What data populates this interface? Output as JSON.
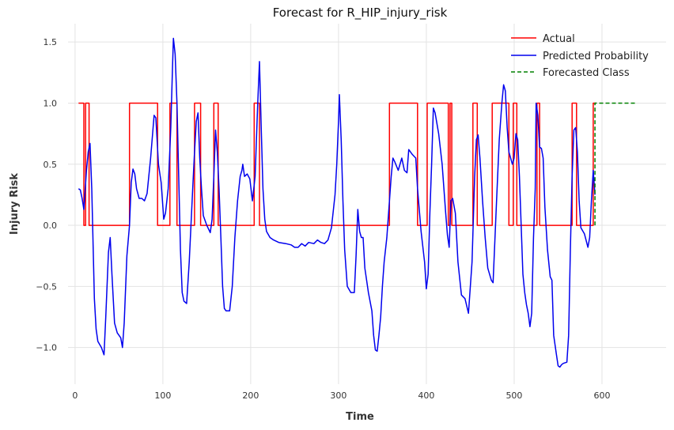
{
  "chart_data": {
    "type": "line",
    "title": "Forecast for R_HIP_injury_risk",
    "xlabel": "Time",
    "ylabel": "Injury Risk",
    "xlim": [
      -8,
      673
    ],
    "ylim": [
      -1.3,
      1.65
    ],
    "grid": true,
    "legend_position": "top-right",
    "x_ticks": [
      0,
      100,
      200,
      300,
      400,
      500,
      600
    ],
    "x_tick_labels": [
      "0",
      "100",
      "200",
      "300",
      "400",
      "500",
      "600"
    ],
    "y_ticks": [
      1.5,
      1.0,
      0.5,
      0.0,
      -0.5,
      -1.0
    ],
    "y_tick_labels": [
      "1.5",
      "1.0",
      "0.5",
      "0.0",
      "−0.5",
      "−1.0"
    ],
    "series": [
      {
        "name": "Actual",
        "color": "#ff0000",
        "style": "solid",
        "points": [
          [
            4,
            1
          ],
          [
            10,
            1
          ],
          [
            10,
            0
          ],
          [
            12,
            0
          ],
          [
            12,
            1
          ],
          [
            16,
            1
          ],
          [
            16,
            0
          ],
          [
            62,
            0
          ],
          [
            62,
            1
          ],
          [
            94,
            1
          ],
          [
            94,
            0
          ],
          [
            108,
            0
          ],
          [
            108,
            1
          ],
          [
            116,
            1
          ],
          [
            116,
            0
          ],
          [
            136,
            0
          ],
          [
            136,
            1
          ],
          [
            143,
            1
          ],
          [
            143,
            0
          ],
          [
            158,
            0
          ],
          [
            158,
            1
          ],
          [
            163,
            1
          ],
          [
            163,
            0
          ],
          [
            204,
            0
          ],
          [
            204,
            1
          ],
          [
            210,
            1
          ],
          [
            210,
            0
          ],
          [
            358,
            0
          ],
          [
            358,
            1
          ],
          [
            390,
            1
          ],
          [
            390,
            0
          ],
          [
            401,
            0
          ],
          [
            401,
            1
          ],
          [
            425,
            1
          ],
          [
            425,
            0
          ],
          [
            427,
            0
          ],
          [
            427,
            1
          ],
          [
            429,
            1
          ],
          [
            429,
            0
          ],
          [
            453,
            0
          ],
          [
            453,
            1
          ],
          [
            458,
            1
          ],
          [
            458,
            0
          ],
          [
            475,
            0
          ],
          [
            475,
            1
          ],
          [
            494,
            1
          ],
          [
            494,
            0
          ],
          [
            499,
            0
          ],
          [
            499,
            1
          ],
          [
            503,
            1
          ],
          [
            503,
            0
          ],
          [
            526,
            0
          ],
          [
            526,
            1
          ],
          [
            529,
            1
          ],
          [
            529,
            0
          ],
          [
            566,
            0
          ],
          [
            566,
            1
          ],
          [
            571,
            1
          ],
          [
            571,
            0
          ],
          [
            590,
            0
          ],
          [
            590,
            1
          ],
          [
            593,
            1
          ]
        ]
      },
      {
        "name": "Predicted Probability",
        "color": "#0000ee",
        "style": "solid",
        "points": [
          [
            4,
            0.3
          ],
          [
            6,
            0.29
          ],
          [
            8,
            0.22
          ],
          [
            10,
            0.13
          ],
          [
            13,
            0.45
          ],
          [
            15,
            0.6
          ],
          [
            17,
            0.67
          ],
          [
            19,
            0.3
          ],
          [
            20,
            0.0
          ],
          [
            22,
            -0.6
          ],
          [
            24,
            -0.85
          ],
          [
            26,
            -0.95
          ],
          [
            30,
            -1.0
          ],
          [
            33,
            -1.06
          ],
          [
            35,
            -0.75
          ],
          [
            38,
            -0.22
          ],
          [
            40,
            -0.1
          ],
          [
            42,
            -0.4
          ],
          [
            45,
            -0.8
          ],
          [
            48,
            -0.88
          ],
          [
            52,
            -0.92
          ],
          [
            54,
            -1.0
          ],
          [
            56,
            -0.8
          ],
          [
            59,
            -0.25
          ],
          [
            62,
            0.0
          ],
          [
            64,
            0.35
          ],
          [
            66,
            0.46
          ],
          [
            68,
            0.42
          ],
          [
            70,
            0.3
          ],
          [
            73,
            0.22
          ],
          [
            76,
            0.22
          ],
          [
            79,
            0.2
          ],
          [
            82,
            0.26
          ],
          [
            86,
            0.55
          ],
          [
            90,
            0.9
          ],
          [
            92,
            0.88
          ],
          [
            95,
            0.5
          ],
          [
            98,
            0.35
          ],
          [
            101,
            0.05
          ],
          [
            103,
            0.1
          ],
          [
            106,
            0.3
          ],
          [
            109,
            0.8
          ],
          [
            111,
            1.3
          ],
          [
            112,
            1.53
          ],
          [
            114,
            1.4
          ],
          [
            116,
            1.0
          ],
          [
            118,
            0.4
          ],
          [
            120,
            -0.2
          ],
          [
            122,
            -0.55
          ],
          [
            124,
            -0.62
          ],
          [
            127,
            -0.64
          ],
          [
            130,
            -0.3
          ],
          [
            132,
            0.0
          ],
          [
            134,
            0.3
          ],
          [
            136,
            0.6
          ],
          [
            138,
            0.85
          ],
          [
            140,
            0.92
          ],
          [
            142,
            0.55
          ],
          [
            144,
            0.3
          ],
          [
            146,
            0.08
          ],
          [
            150,
            0.0
          ],
          [
            154,
            -0.06
          ],
          [
            156,
            0.05
          ],
          [
            158,
            0.4
          ],
          [
            160,
            0.78
          ],
          [
            162,
            0.6
          ],
          [
            164,
            0.3
          ],
          [
            166,
            -0.1
          ],
          [
            168,
            -0.5
          ],
          [
            170,
            -0.68
          ],
          [
            172,
            -0.7
          ],
          [
            176,
            -0.7
          ],
          [
            179,
            -0.5
          ],
          [
            182,
            -0.1
          ],
          [
            185,
            0.2
          ],
          [
            188,
            0.4
          ],
          [
            190,
            0.45
          ],
          [
            191,
            0.5
          ],
          [
            193,
            0.4
          ],
          [
            196,
            0.42
          ],
          [
            199,
            0.38
          ],
          [
            202,
            0.2
          ],
          [
            205,
            0.4
          ],
          [
            208,
            1.0
          ],
          [
            210,
            1.34
          ],
          [
            212,
            0.8
          ],
          [
            214,
            0.3
          ],
          [
            216,
            0.05
          ],
          [
            218,
            -0.05
          ],
          [
            222,
            -0.1
          ],
          [
            226,
            -0.12
          ],
          [
            232,
            -0.14
          ],
          [
            240,
            -0.15
          ],
          [
            246,
            -0.16
          ],
          [
            250,
            -0.18
          ],
          [
            254,
            -0.18
          ],
          [
            258,
            -0.15
          ],
          [
            262,
            -0.17
          ],
          [
            266,
            -0.14
          ],
          [
            272,
            -0.15
          ],
          [
            276,
            -0.12
          ],
          [
            280,
            -0.14
          ],
          [
            284,
            -0.15
          ],
          [
            288,
            -0.12
          ],
          [
            292,
            -0.02
          ],
          [
            296,
            0.25
          ],
          [
            298,
            0.5
          ],
          [
            300,
            0.85
          ],
          [
            301,
            1.07
          ],
          [
            303,
            0.7
          ],
          [
            305,
            0.2
          ],
          [
            307,
            -0.2
          ],
          [
            310,
            -0.5
          ],
          [
            314,
            -0.55
          ],
          [
            318,
            -0.55
          ],
          [
            320,
            -0.25
          ],
          [
            322,
            0.13
          ],
          [
            324,
            -0.05
          ],
          [
            326,
            -0.1
          ],
          [
            328,
            -0.1
          ],
          [
            330,
            -0.35
          ],
          [
            334,
            -0.55
          ],
          [
            338,
            -0.7
          ],
          [
            340,
            -0.9
          ],
          [
            342,
            -1.02
          ],
          [
            344,
            -1.03
          ],
          [
            346,
            -0.9
          ],
          [
            348,
            -0.75
          ],
          [
            350,
            -0.5
          ],
          [
            352,
            -0.3
          ],
          [
            355,
            -0.1
          ],
          [
            358,
            0.2
          ],
          [
            360,
            0.4
          ],
          [
            362,
            0.55
          ],
          [
            364,
            0.52
          ],
          [
            368,
            0.45
          ],
          [
            372,
            0.55
          ],
          [
            375,
            0.45
          ],
          [
            378,
            0.43
          ],
          [
            380,
            0.62
          ],
          [
            384,
            0.58
          ],
          [
            388,
            0.55
          ],
          [
            390,
            0.3
          ],
          [
            394,
            -0.05
          ],
          [
            398,
            -0.3
          ],
          [
            400,
            -0.52
          ],
          [
            402,
            -0.4
          ],
          [
            404,
            0.1
          ],
          [
            406,
            0.5
          ],
          [
            408,
            0.96
          ],
          [
            410,
            0.92
          ],
          [
            414,
            0.75
          ],
          [
            418,
            0.5
          ],
          [
            422,
            0.1
          ],
          [
            424,
            -0.08
          ],
          [
            426,
            -0.18
          ],
          [
            428,
            0.2
          ],
          [
            430,
            0.22
          ],
          [
            433,
            0.1
          ],
          [
            436,
            -0.3
          ],
          [
            440,
            -0.57
          ],
          [
            444,
            -0.6
          ],
          [
            448,
            -0.72
          ],
          [
            452,
            -0.3
          ],
          [
            455,
            0.4
          ],
          [
            457,
            0.7
          ],
          [
            459,
            0.74
          ],
          [
            461,
            0.55
          ],
          [
            464,
            0.2
          ],
          [
            467,
            -0.1
          ],
          [
            470,
            -0.35
          ],
          [
            474,
            -0.45
          ],
          [
            476,
            -0.47
          ],
          [
            480,
            0.2
          ],
          [
            483,
            0.7
          ],
          [
            486,
            1.0
          ],
          [
            488,
            1.15
          ],
          [
            490,
            1.1
          ],
          [
            492,
            0.8
          ],
          [
            494,
            0.6
          ],
          [
            496,
            0.55
          ],
          [
            498,
            0.5
          ],
          [
            500,
            0.55
          ],
          [
            502,
            0.75
          ],
          [
            504,
            0.7
          ],
          [
            506,
            0.4
          ],
          [
            508,
            0.0
          ],
          [
            510,
            -0.4
          ],
          [
            512,
            -0.55
          ],
          [
            514,
            -0.65
          ],
          [
            516,
            -0.72
          ],
          [
            518,
            -0.83
          ],
          [
            520,
            -0.72
          ],
          [
            522,
            -0.1
          ],
          [
            524,
            0.3
          ],
          [
            525,
            1.0
          ],
          [
            527,
            0.9
          ],
          [
            529,
            0.64
          ],
          [
            531,
            0.63
          ],
          [
            533,
            0.55
          ],
          [
            535,
            0.15
          ],
          [
            538,
            -0.2
          ],
          [
            541,
            -0.42
          ],
          [
            543,
            -0.45
          ],
          [
            545,
            -0.9
          ],
          [
            548,
            -1.05
          ],
          [
            550,
            -1.15
          ],
          [
            552,
            -1.16
          ],
          [
            554,
            -1.14
          ],
          [
            556,
            -1.13
          ],
          [
            560,
            -1.12
          ],
          [
            562,
            -0.9
          ],
          [
            564,
            -0.2
          ],
          [
            566,
            0.4
          ],
          [
            568,
            0.78
          ],
          [
            570,
            0.8
          ],
          [
            572,
            0.6
          ],
          [
            574,
            0.2
          ],
          [
            576,
            -0.02
          ],
          [
            580,
            -0.07
          ],
          [
            584,
            -0.18
          ],
          [
            586,
            -0.1
          ],
          [
            588,
            0.2
          ],
          [
            590,
            0.45
          ],
          [
            592,
            0.25
          ]
        ]
      },
      {
        "name": "Forecasted Class",
        "color": "#008000",
        "style": "dashed",
        "points": [
          [
            592,
            0
          ],
          [
            592,
            1
          ],
          [
            640,
            1
          ]
        ]
      }
    ]
  }
}
